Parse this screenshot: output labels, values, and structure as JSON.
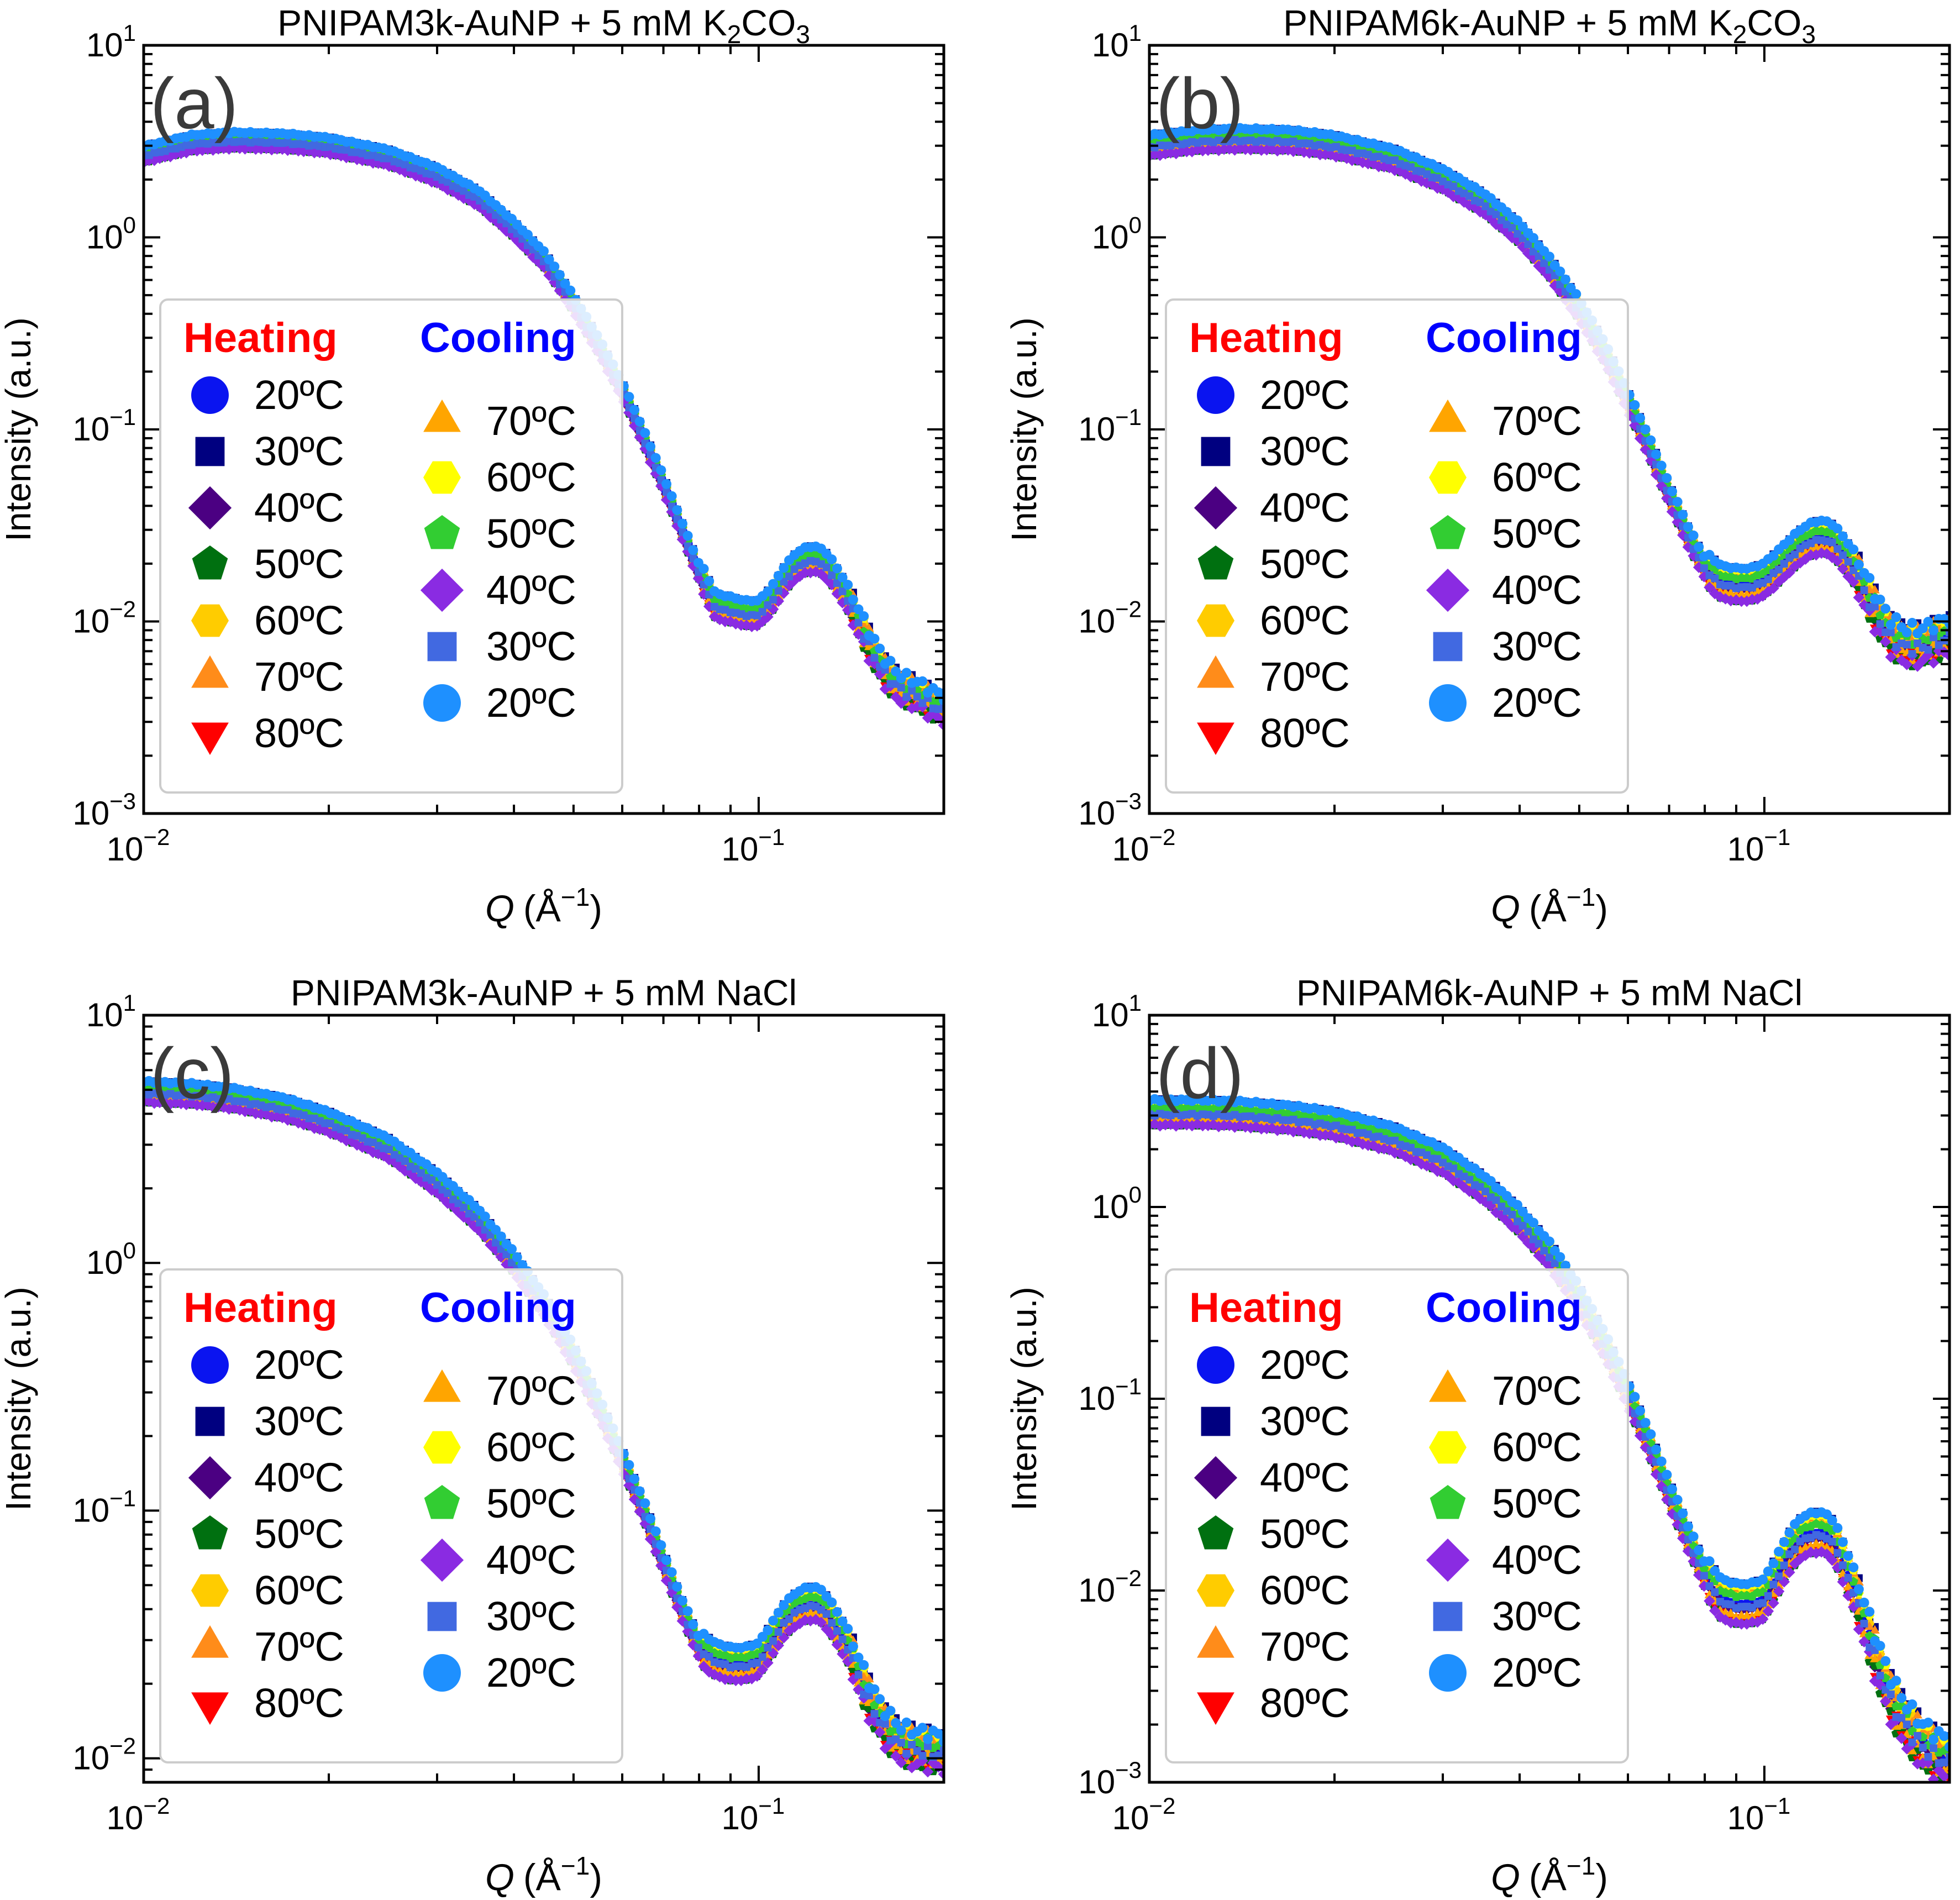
{
  "figure": {
    "x_axis_label": "Q (Å⁻¹)",
    "x_axis_symbol": "Q",
    "x_axis_unit": "(Å",
    "x_axis_unit_exp": "−1",
    "x_axis_unit_close": ")",
    "y_axis_label": "Intensity (a.u.)"
  },
  "colors": {
    "heating_title": "#ff0000",
    "cooling_title": "#0000ff",
    "frame": "#000000",
    "legend_border": "#cccccc"
  },
  "legend": {
    "heating_title": "Heating",
    "cooling_title": "Cooling",
    "heating": [
      {
        "label": "20ºC",
        "marker": "circle",
        "color": "#0a14f0"
      },
      {
        "label": "30ºC",
        "marker": "square",
        "color": "#000080"
      },
      {
        "label": "40ºC",
        "marker": "diamond",
        "color": "#4b0082"
      },
      {
        "label": "50ºC",
        "marker": "pentagon",
        "color": "#007010"
      },
      {
        "label": "60ºC",
        "marker": "hexagon",
        "color": "#ffcc00"
      },
      {
        "label": "70ºC",
        "marker": "triangle-up",
        "color": "#ff8c1a"
      },
      {
        "label": "80ºC",
        "marker": "triangle-down",
        "color": "#ff0000"
      }
    ],
    "cooling": [
      {
        "label": "70ºC",
        "marker": "triangle-up",
        "color": "#ffa500"
      },
      {
        "label": "60ºC",
        "marker": "hexagon",
        "color": "#ffff00"
      },
      {
        "label": "50ºC",
        "marker": "pentagon",
        "color": "#32cd32"
      },
      {
        "label": "40ºC",
        "marker": "diamond",
        "color": "#8a2be2"
      },
      {
        "label": "30ºC",
        "marker": "square",
        "color": "#4169e1"
      },
      {
        "label": "20ºC",
        "marker": "circle",
        "color": "#1e90ff"
      }
    ]
  },
  "chart_data": [
    {
      "type": "scatter",
      "panel": "(a)",
      "title_main": "PNIPAM3k-AuNP + 5 mM K",
      "title_sub1": "2",
      "title_mid": "CO",
      "title_sub2": "3",
      "xscale": "log",
      "yscale": "log",
      "xlim": [
        0.01,
        0.2
      ],
      "ylim": [
        0.001,
        10
      ],
      "x_ticks": [
        {
          "base": "10",
          "exp": "−2",
          "value": 0.01
        },
        {
          "base": "10",
          "exp": "−1",
          "value": 0.1
        }
      ],
      "y_ticks": [
        {
          "base": "10",
          "exp": "−3",
          "value": 0.001
        },
        {
          "base": "10",
          "exp": "−2",
          "value": 0.01
        },
        {
          "base": "10",
          "exp": "−1",
          "value": 0.1
        },
        {
          "base": "10",
          "exp": "0",
          "value": 1
        },
        {
          "base": "10",
          "exp": "1",
          "value": 10
        }
      ],
      "curve": {
        "x": [
          0.01,
          0.012,
          0.014,
          0.017,
          0.02,
          0.025,
          0.03,
          0.035,
          0.04,
          0.045,
          0.05,
          0.055,
          0.06,
          0.065,
          0.07,
          0.075,
          0.08,
          0.085,
          0.09,
          0.095,
          0.1,
          0.105,
          0.11,
          0.115,
          0.12,
          0.125,
          0.13,
          0.14,
          0.15,
          0.16,
          0.17,
          0.18,
          0.19,
          0.2
        ],
        "y": [
          2.7,
          3.1,
          3.2,
          3.15,
          3.0,
          2.6,
          2.1,
          1.6,
          1.1,
          0.75,
          0.45,
          0.27,
          0.16,
          0.09,
          0.052,
          0.03,
          0.018,
          0.012,
          0.0115,
          0.011,
          0.011,
          0.013,
          0.0165,
          0.0195,
          0.021,
          0.021,
          0.019,
          0.013,
          0.008,
          0.0055,
          0.0045,
          0.0042,
          0.0038,
          0.0035
        ]
      },
      "spread": 0.07
    },
    {
      "type": "scatter",
      "panel": "(b)",
      "title_main": "PNIPAM6k-AuNP + 5 mM K",
      "title_sub1": "2",
      "title_mid": "CO",
      "title_sub2": "3",
      "xscale": "log",
      "yscale": "log",
      "xlim": [
        0.01,
        0.2
      ],
      "ylim": [
        0.001,
        10
      ],
      "x_ticks": [
        {
          "base": "10",
          "exp": "−2",
          "value": 0.01
        },
        {
          "base": "10",
          "exp": "−1",
          "value": 0.1
        }
      ],
      "y_ticks": [
        {
          "base": "10",
          "exp": "−3",
          "value": 0.001
        },
        {
          "base": "10",
          "exp": "−2",
          "value": 0.01
        },
        {
          "base": "10",
          "exp": "−1",
          "value": 0.1
        },
        {
          "base": "10",
          "exp": "0",
          "value": 1
        },
        {
          "base": "10",
          "exp": "1",
          "value": 10
        }
      ],
      "curve": {
        "x": [
          0.01,
          0.012,
          0.014,
          0.017,
          0.02,
          0.025,
          0.03,
          0.035,
          0.04,
          0.045,
          0.05,
          0.055,
          0.06,
          0.065,
          0.07,
          0.075,
          0.08,
          0.085,
          0.09,
          0.095,
          0.1,
          0.105,
          0.11,
          0.115,
          0.12,
          0.125,
          0.13,
          0.14,
          0.15,
          0.16,
          0.17,
          0.18,
          0.19,
          0.2
        ],
        "y": [
          3.0,
          3.2,
          3.25,
          3.2,
          3.0,
          2.55,
          2.0,
          1.5,
          1.05,
          0.68,
          0.42,
          0.25,
          0.14,
          0.08,
          0.046,
          0.028,
          0.019,
          0.016,
          0.0155,
          0.0155,
          0.0165,
          0.019,
          0.022,
          0.025,
          0.027,
          0.0275,
          0.026,
          0.019,
          0.012,
          0.0085,
          0.0075,
          0.0075,
          0.008,
          0.0085
        ]
      },
      "spread": 0.09
    },
    {
      "type": "scatter",
      "panel": "(c)",
      "title_main": "PNIPAM3k-AuNP + 5 mM NaCl",
      "title_sub1": "",
      "title_mid": "",
      "title_sub2": "",
      "xscale": "log",
      "yscale": "log",
      "xlim": [
        0.01,
        0.2
      ],
      "ylim": [
        0.008,
        10
      ],
      "x_ticks": [
        {
          "base": "10",
          "exp": "−2",
          "value": 0.01
        },
        {
          "base": "10",
          "exp": "−1",
          "value": 0.1
        }
      ],
      "y_ticks": [
        {
          "base": "10",
          "exp": "−2",
          "value": 0.01
        },
        {
          "base": "10",
          "exp": "−1",
          "value": 0.1
        },
        {
          "base": "10",
          "exp": "0",
          "value": 1
        },
        {
          "base": "10",
          "exp": "1",
          "value": 10
        }
      ],
      "curve": {
        "x": [
          0.01,
          0.012,
          0.014,
          0.017,
          0.02,
          0.025,
          0.03,
          0.035,
          0.04,
          0.045,
          0.05,
          0.055,
          0.06,
          0.065,
          0.07,
          0.075,
          0.08,
          0.085,
          0.09,
          0.095,
          0.1,
          0.105,
          0.11,
          0.115,
          0.12,
          0.125,
          0.13,
          0.14,
          0.15,
          0.16,
          0.17,
          0.18,
          0.19,
          0.2
        ],
        "y": [
          4.9,
          4.8,
          4.6,
          4.2,
          3.7,
          2.9,
          2.1,
          1.5,
          1.0,
          0.66,
          0.42,
          0.26,
          0.16,
          0.1,
          0.062,
          0.04,
          0.028,
          0.025,
          0.024,
          0.024,
          0.025,
          0.03,
          0.036,
          0.04,
          0.042,
          0.042,
          0.038,
          0.028,
          0.018,
          0.0135,
          0.0115,
          0.011,
          0.0108,
          0.0105
        ]
      },
      "spread": 0.07
    },
    {
      "type": "scatter",
      "panel": "(d)",
      "title_main": "PNIPAM6k-AuNP + 5 mM NaCl",
      "title_sub1": "",
      "title_mid": "",
      "title_sub2": "",
      "xscale": "log",
      "yscale": "log",
      "xlim": [
        0.01,
        0.2
      ],
      "ylim": [
        0.001,
        10
      ],
      "x_ticks": [
        {
          "base": "10",
          "exp": "−2",
          "value": 0.01
        },
        {
          "base": "10",
          "exp": "−1",
          "value": 0.1
        }
      ],
      "y_ticks": [
        {
          "base": "10",
          "exp": "−3",
          "value": 0.001
        },
        {
          "base": "10",
          "exp": "−2",
          "value": 0.01
        },
        {
          "base": "10",
          "exp": "−1",
          "value": 0.1
        },
        {
          "base": "10",
          "exp": "0",
          "value": 1
        },
        {
          "base": "10",
          "exp": "1",
          "value": 10
        }
      ],
      "curve": {
        "x": [
          0.01,
          0.012,
          0.014,
          0.017,
          0.02,
          0.025,
          0.03,
          0.035,
          0.04,
          0.045,
          0.05,
          0.055,
          0.06,
          0.065,
          0.07,
          0.075,
          0.08,
          0.085,
          0.09,
          0.095,
          0.1,
          0.105,
          0.11,
          0.115,
          0.12,
          0.125,
          0.13,
          0.14,
          0.15,
          0.16,
          0.17,
          0.18,
          0.19,
          0.2
        ],
        "y": [
          3.1,
          3.1,
          3.05,
          2.9,
          2.7,
          2.25,
          1.75,
          1.25,
          0.85,
          0.55,
          0.33,
          0.19,
          0.105,
          0.058,
          0.032,
          0.019,
          0.012,
          0.009,
          0.0085,
          0.0085,
          0.009,
          0.012,
          0.016,
          0.019,
          0.02,
          0.02,
          0.018,
          0.01,
          0.005,
          0.0028,
          0.002,
          0.0016,
          0.0014,
          0.0013
        ]
      },
      "spread": 0.11
    }
  ]
}
